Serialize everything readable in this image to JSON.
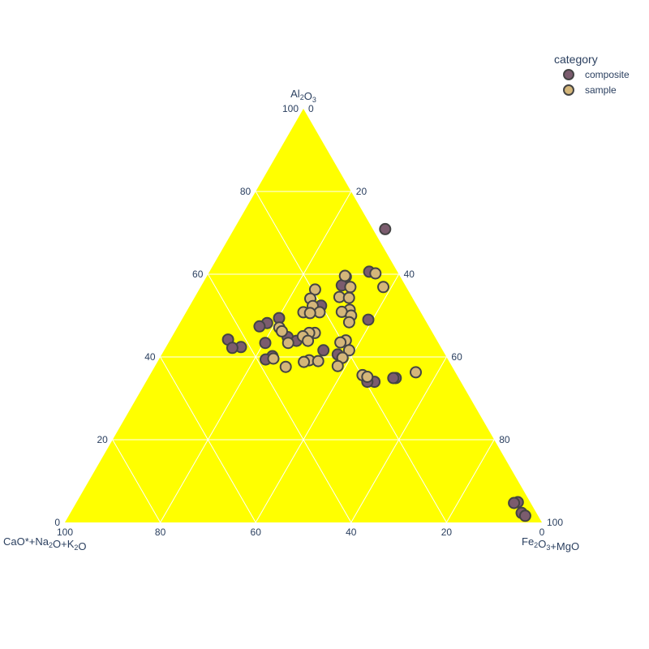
{
  "chart_data": {
    "type": "scatter",
    "subtype": "ternary",
    "background_color": "#ffff00",
    "grid": true,
    "axes": {
      "a": {
        "title": "Al2O3",
        "title_parts": [
          [
            "Al",
            "n"
          ],
          [
            "2",
            "sub"
          ],
          [
            "O",
            "n"
          ],
          [
            "3",
            "sub"
          ]
        ],
        "ticks": [
          0,
          20,
          40,
          60,
          80,
          100
        ]
      },
      "b": {
        "title": "CaO*+Na2O+K2O",
        "title_parts": [
          [
            "CaO*+Na",
            "n"
          ],
          [
            "2",
            "sub"
          ],
          [
            "O+K",
            "n"
          ],
          [
            "2",
            "sub"
          ],
          [
            "O",
            "n"
          ]
        ],
        "ticks": [
          0,
          20,
          40,
          60,
          80,
          100
        ]
      },
      "c": {
        "title": "Fe2O3+MgO",
        "title_parts": [
          [
            "Fe",
            "n"
          ],
          [
            "2",
            "sub"
          ],
          [
            "O",
            "n"
          ],
          [
            "3",
            "sub"
          ],
          [
            "+MgO",
            "n"
          ]
        ],
        "ticks": [
          0,
          20,
          40,
          60,
          80,
          100
        ]
      }
    },
    "legend": {
      "title": "category",
      "position": "top-right",
      "items": [
        {
          "name": "composite",
          "color": "#7b5c6e"
        },
        {
          "name": "sample",
          "color": "#d4b67a"
        }
      ]
    },
    "marker_outline_color": "#444444",
    "series": [
      {
        "name": "composite",
        "color": "#7b5c6e",
        "points": [
          {
            "a": 70.9,
            "c": 31.7
          },
          {
            "a": 60.6,
            "c": 33.5
          },
          {
            "a": 59.4,
            "c": 29.2
          },
          {
            "a": 57.3,
            "c": 29.4
          },
          {
            "a": 52.4,
            "c": 27.5
          },
          {
            "a": 49.4,
            "c": 20.2
          },
          {
            "a": 49.0,
            "c": 39.1
          },
          {
            "a": 48.2,
            "c": 18.3
          },
          {
            "a": 47.4,
            "c": 17.1
          },
          {
            "a": 44.8,
            "c": 24.3
          },
          {
            "a": 44.2,
            "c": 12.1
          },
          {
            "a": 43.9,
            "c": 26.6
          },
          {
            "a": 43.4,
            "c": 20.3
          },
          {
            "a": 42.4,
            "c": 15.7
          },
          {
            "a": 42.2,
            "c": 14.0
          },
          {
            "a": 41.6,
            "c": 33.4
          },
          {
            "a": 40.6,
            "c": 36.9
          },
          {
            "a": 40.2,
            "c": 23.4
          },
          {
            "a": 39.8,
            "c": 38.3
          },
          {
            "a": 39.4,
            "c": 22.4
          },
          {
            "a": 34.0,
            "c": 47.9
          },
          {
            "a": 34.0,
            "c": 46.4
          },
          {
            "a": 34.9,
            "c": 51.9
          },
          {
            "a": 34.9,
            "c": 51.4
          },
          {
            "a": 4.9,
            "c": 92.5
          },
          {
            "a": 4.7,
            "c": 91.8
          },
          {
            "a": 2.3,
            "c": 94.6
          },
          {
            "a": 1.6,
            "c": 95.7
          }
        ]
      },
      {
        "name": "sample",
        "color": "#d4b67a",
        "points": [
          {
            "a": 60.2,
            "c": 35.0
          },
          {
            "a": 59.6,
            "c": 28.9
          },
          {
            "a": 56.9,
            "c": 38.3
          },
          {
            "a": 56.9,
            "c": 31.4
          },
          {
            "a": 56.3,
            "c": 24.3
          },
          {
            "a": 54.5,
            "c": 30.3
          },
          {
            "a": 54.3,
            "c": 32.4
          },
          {
            "a": 54.1,
            "c": 24.4
          },
          {
            "a": 52.3,
            "c": 25.8
          },
          {
            "a": 51.4,
            "c": 34.0
          },
          {
            "a": 50.9,
            "c": 32.6
          },
          {
            "a": 50.8,
            "c": 28.0
          },
          {
            "a": 50.8,
            "c": 24.6
          },
          {
            "a": 50.6,
            "c": 26.1
          },
          {
            "a": 50.0,
            "c": 35.0
          },
          {
            "a": 48.4,
            "c": 35.4
          },
          {
            "a": 47.1,
            "c": 21.4
          },
          {
            "a": 46.2,
            "c": 22.4
          },
          {
            "a": 45.8,
            "c": 29.5
          },
          {
            "a": 45.8,
            "c": 28.3
          },
          {
            "a": 45.0,
            "c": 27.4
          },
          {
            "a": 44.0,
            "c": 36.9
          },
          {
            "a": 43.9,
            "c": 29.0
          },
          {
            "a": 43.5,
            "c": 36.0
          },
          {
            "a": 43.4,
            "c": 25.1
          },
          {
            "a": 41.6,
            "c": 38.8
          },
          {
            "a": 39.8,
            "c": 38.3
          },
          {
            "a": 39.6,
            "c": 23.9
          },
          {
            "a": 39.2,
            "c": 31.6
          },
          {
            "a": 39.0,
            "c": 33.6
          },
          {
            "a": 38.8,
            "c": 30.7
          },
          {
            "a": 37.8,
            "c": 38.3
          },
          {
            "a": 37.6,
            "c": 27.5
          },
          {
            "a": 35.6,
            "c": 44.6
          },
          {
            "a": 35.2,
            "c": 45.8
          },
          {
            "a": 36.3,
            "c": 55.4
          }
        ]
      }
    ]
  }
}
